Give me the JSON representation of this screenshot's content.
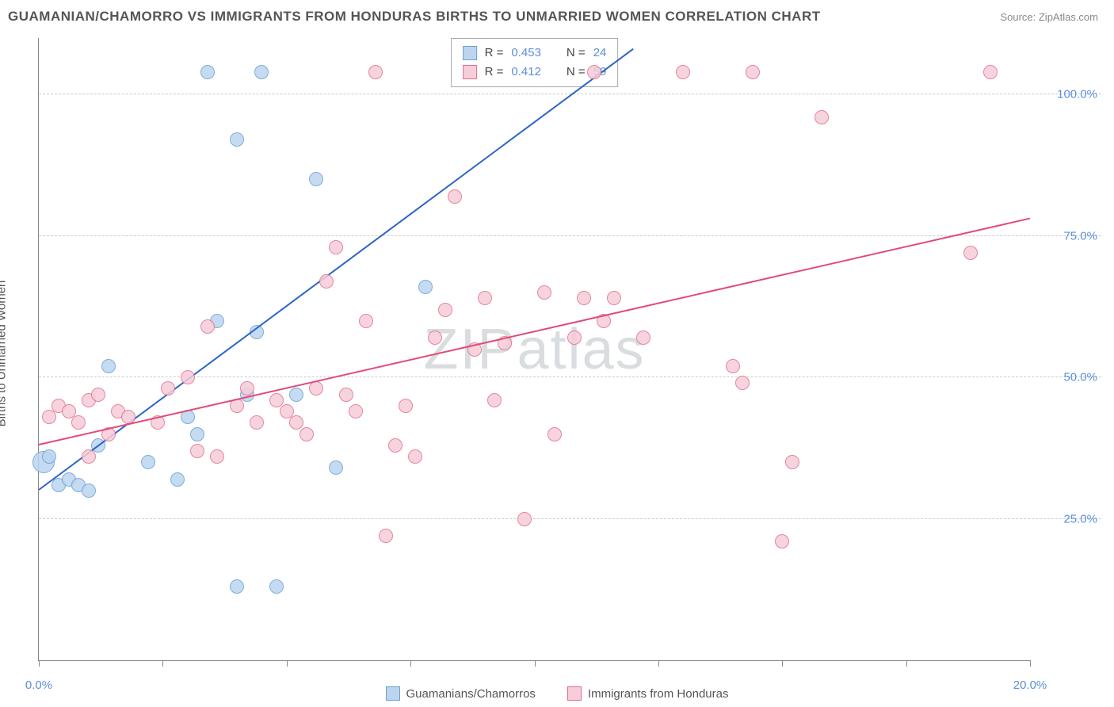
{
  "header": {
    "title": "GUAMANIAN/CHAMORRO VS IMMIGRANTS FROM HONDURAS BIRTHS TO UNMARRIED WOMEN CORRELATION CHART",
    "source_prefix": "Source: ",
    "source_link": "ZipAtlas.com"
  },
  "ylabel": "Births to Unmarried Women",
  "watermark": "ZIPatlas",
  "chart": {
    "type": "scatter",
    "xlim": [
      0,
      20
    ],
    "ylim": [
      0,
      110
    ],
    "x_ticks": [
      0,
      2.5,
      5,
      7.5,
      10,
      12.5,
      15,
      17.5,
      20
    ],
    "x_tick_labels": {
      "0": "0.0%",
      "20": "20.0%"
    },
    "y_gridlines": [
      25,
      50,
      75,
      100
    ],
    "y_tick_labels": {
      "25": "25.0%",
      "50": "50.0%",
      "75": "75.0%",
      "100": "100.0%"
    },
    "background_color": "#ffffff",
    "grid_color": "#cccccc",
    "axis_color": "#888888",
    "tick_label_color": "#5b8fd6",
    "point_radius": 9,
    "large_point_radius": 14
  },
  "series": [
    {
      "key": "guam",
      "label": "Guamanians/Chamorros",
      "fill": "#bcd5ef",
      "stroke": "#6a9fd4",
      "line_color": "#2b65c7",
      "stats": {
        "R_label": "R =",
        "R": "0.453",
        "N_label": "N =",
        "N": "24"
      },
      "trend": {
        "x1": 0,
        "y1": 30,
        "x2": 12,
        "y2": 108
      },
      "points": [
        [
          0.1,
          35,
          14
        ],
        [
          0.2,
          36
        ],
        [
          0.4,
          31
        ],
        [
          0.6,
          32
        ],
        [
          0.8,
          31
        ],
        [
          1.0,
          30
        ],
        [
          1.2,
          38
        ],
        [
          1.4,
          52
        ],
        [
          2.2,
          35
        ],
        [
          2.8,
          32
        ],
        [
          3.0,
          43
        ],
        [
          3.2,
          40
        ],
        [
          3.4,
          104
        ],
        [
          3.6,
          60
        ],
        [
          4.0,
          92
        ],
        [
          4.0,
          13
        ],
        [
          4.2,
          47
        ],
        [
          4.4,
          58
        ],
        [
          4.5,
          104
        ],
        [
          4.8,
          13
        ],
        [
          5.2,
          47
        ],
        [
          5.6,
          85
        ],
        [
          6.0,
          34
        ],
        [
          7.8,
          66
        ]
      ]
    },
    {
      "key": "hond",
      "label": "Immigrants from Honduras",
      "fill": "#f6cdd8",
      "stroke": "#e0708f",
      "line_color": "#e24a78",
      "stats": {
        "R_label": "R =",
        "R": "0.412",
        "N_label": "N =",
        "N": "59"
      },
      "trend": {
        "x1": 0,
        "y1": 38,
        "x2": 20,
        "y2": 78
      },
      "points": [
        [
          0.2,
          43
        ],
        [
          0.4,
          45
        ],
        [
          0.6,
          44
        ],
        [
          0.8,
          42
        ],
        [
          1.0,
          36
        ],
        [
          1.0,
          46
        ],
        [
          1.2,
          47
        ],
        [
          1.4,
          40
        ],
        [
          1.6,
          44
        ],
        [
          1.8,
          43
        ],
        [
          2.4,
          42
        ],
        [
          2.6,
          48
        ],
        [
          3.0,
          50
        ],
        [
          3.2,
          37
        ],
        [
          3.4,
          59
        ],
        [
          3.6,
          36
        ],
        [
          4.0,
          45
        ],
        [
          4.2,
          48
        ],
        [
          4.4,
          42
        ],
        [
          4.8,
          46
        ],
        [
          5.0,
          44
        ],
        [
          5.2,
          42
        ],
        [
          5.4,
          40
        ],
        [
          5.6,
          48
        ],
        [
          5.8,
          67
        ],
        [
          6.0,
          73
        ],
        [
          6.2,
          47
        ],
        [
          6.4,
          44
        ],
        [
          6.6,
          60
        ],
        [
          6.8,
          104
        ],
        [
          7.0,
          22
        ],
        [
          7.2,
          38
        ],
        [
          7.4,
          45
        ],
        [
          7.6,
          36
        ],
        [
          8.0,
          57
        ],
        [
          8.2,
          62
        ],
        [
          8.4,
          82
        ],
        [
          8.8,
          55
        ],
        [
          9.0,
          64
        ],
        [
          9.2,
          46
        ],
        [
          9.4,
          56
        ],
        [
          9.8,
          25
        ],
        [
          10.2,
          65
        ],
        [
          10.4,
          40
        ],
        [
          10.8,
          57
        ],
        [
          11.0,
          64
        ],
        [
          11.2,
          104
        ],
        [
          11.4,
          60
        ],
        [
          11.6,
          64
        ],
        [
          12.2,
          57
        ],
        [
          13.0,
          104
        ],
        [
          14.0,
          52
        ],
        [
          14.2,
          49
        ],
        [
          14.4,
          104
        ],
        [
          15.0,
          21
        ],
        [
          15.2,
          35
        ],
        [
          15.8,
          96
        ],
        [
          18.8,
          72
        ],
        [
          19.2,
          104
        ]
      ]
    }
  ],
  "stats_box": {
    "col_R": "R =",
    "col_N": "N ="
  }
}
